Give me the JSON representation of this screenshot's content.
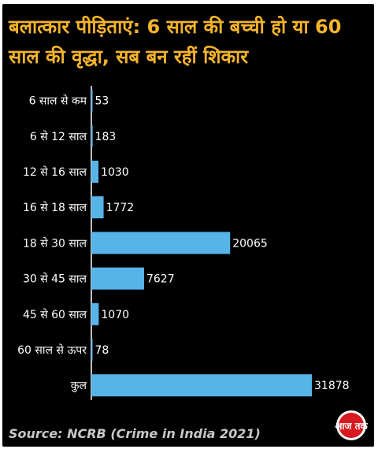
{
  "title": "बलात्कार पीड़िताएं: 6 साल की बच्ची हो या 60 साल की वृद्धा, सब बन रहीं शिकार",
  "source": "Source: NCRB (Crime in India 2021)",
  "logo": {
    "text": "आज तक",
    "color": "#d71920"
  },
  "colors": {
    "bar": "#56b4e9",
    "title": "#f5b42a",
    "text": "#ffffff",
    "background": "#000000"
  },
  "chart_data": {
    "type": "bar",
    "orientation": "horizontal",
    "categories": [
      "6 साल से कम",
      "6 से 12 साल",
      "12 से 16 साल",
      "16 से 18 साल",
      "18 से 30 साल",
      "30 से 45 साल",
      "45 से 60 साल",
      "60 साल से ऊपर",
      "कुल"
    ],
    "values": [
      53,
      183,
      1030,
      1772,
      20065,
      7627,
      1070,
      78,
      31878
    ],
    "xlim": [
      0,
      31878
    ],
    "grid": false,
    "legend": "none"
  }
}
